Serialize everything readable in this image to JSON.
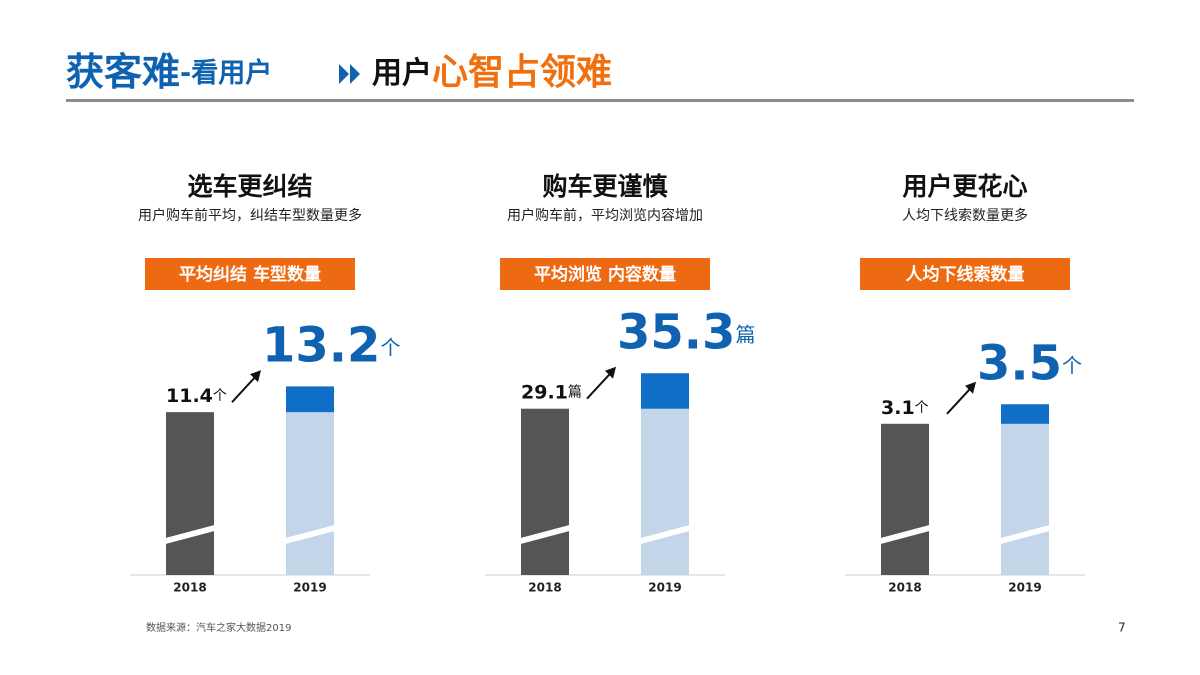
{
  "slide": {
    "title_main": "获客难",
    "title_sub": "-看用户",
    "title_user": "用户",
    "title_accent": "心智占领难",
    "source": "数据来源：汽车之家大数据2019",
    "page": "7"
  },
  "chart_data": [
    {
      "type": "bar",
      "title": "选车更纠结",
      "subtitle": "用户购车前平均，纠结车型数量更多",
      "badge": "平均纠结 车型数量",
      "unit": "个",
      "categories": [
        "2018",
        "2019"
      ],
      "values": [
        11.4,
        13.2
      ],
      "ylim": [
        0,
        14
      ]
    },
    {
      "type": "bar",
      "title": "购车更谨慎",
      "subtitle": "用户购车前，平均浏览内容增加",
      "badge": "平均浏览 内容数量",
      "unit": "篇",
      "categories": [
        "2018",
        "2019"
      ],
      "values": [
        29.1,
        35.3
      ],
      "ylim": [
        0,
        35
      ]
    },
    {
      "type": "bar",
      "title": "用户更花心",
      "subtitle": "人均下线索数量更多",
      "badge": "人均下线索数量",
      "unit": "个",
      "categories": [
        "2018",
        "2019"
      ],
      "values": [
        3.1,
        3.5
      ],
      "ylim": [
        0,
        4.1
      ]
    }
  ]
}
